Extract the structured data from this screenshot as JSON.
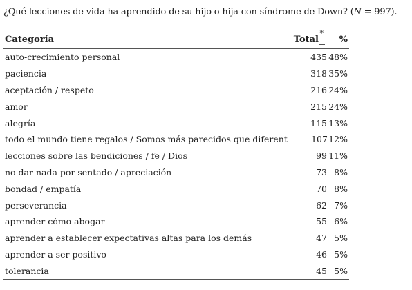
{
  "caption": {
    "text_before": "¿Qué lecciones de vida ha aprendido de su hijo o hija con síndrome de Down? (",
    "n_var": "N",
    "text_after": " = 997)."
  },
  "table": {
    "headers": {
      "category": "Categoría",
      "total": "Total",
      "total_marker": "*",
      "percent": "%"
    },
    "rows": [
      {
        "category": "auto-crecimiento personal",
        "total": "435",
        "percent": "48%"
      },
      {
        "category": "paciencia",
        "total": "318",
        "percent": "35%"
      },
      {
        "category": "aceptación / respeto",
        "total": "216",
        "percent": "24%"
      },
      {
        "category": "amor",
        "total": "215",
        "percent": "24%"
      },
      {
        "category": "alegría",
        "total": "115",
        "percent": "13%"
      },
      {
        "category": "todo el mundo tiene regalos / Somos más parecidos que diferentes",
        "total": "107",
        "percent": "12%"
      },
      {
        "category": "lecciones sobre las bendiciones / fe / Dios",
        "total": "99",
        "percent": "11%"
      },
      {
        "category": "no dar nada por sentado / apreciación",
        "total": "73",
        "percent": "8%"
      },
      {
        "category": "bondad / empatía",
        "total": "70",
        "percent": "8%"
      },
      {
        "category": "perseverancia",
        "total": "62",
        "percent": "7%"
      },
      {
        "category": "aprender cómo abogar",
        "total": "55",
        "percent": "6%"
      },
      {
        "category": "aprender a establecer expectativas altas para los demás",
        "total": "47",
        "percent": "5%"
      },
      {
        "category": "aprender a ser positivo",
        "total": "46",
        "percent": "5%"
      },
      {
        "category": "tolerancia",
        "total": "45",
        "percent": "5%"
      }
    ]
  }
}
